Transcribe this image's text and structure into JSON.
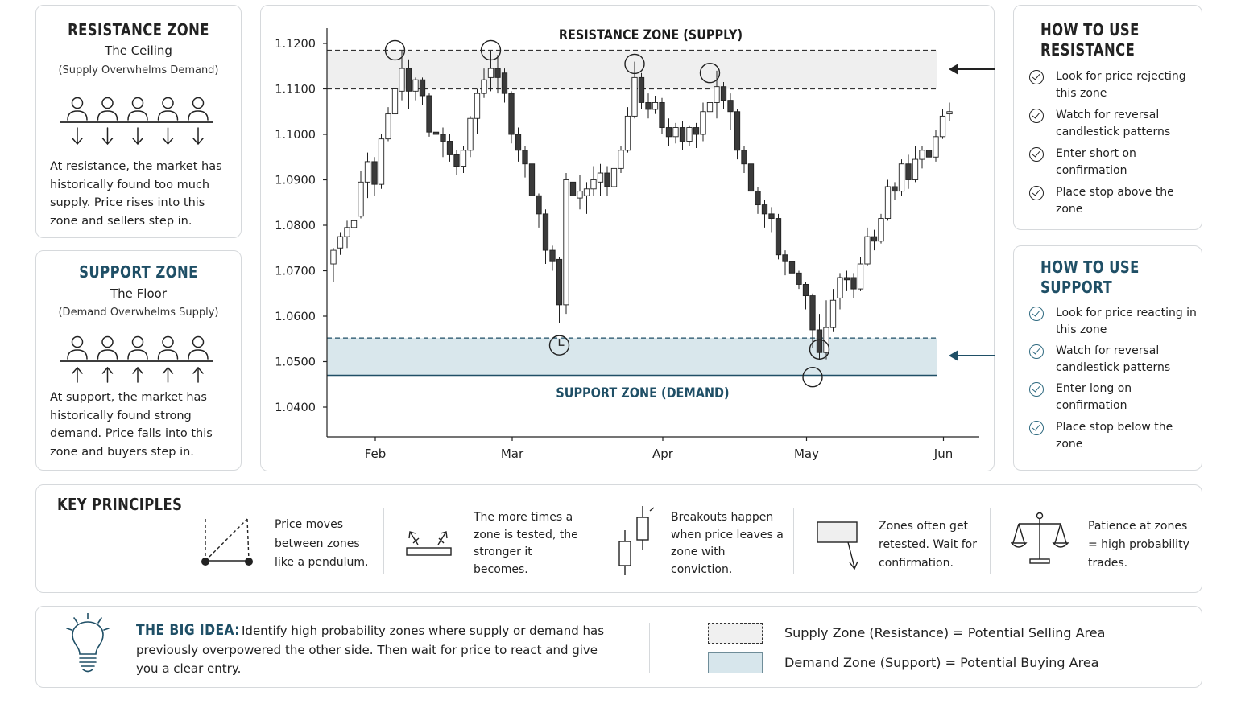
{
  "resistance_card": {
    "title": "RESISTANCE ZONE",
    "subtitle": "The Ceiling",
    "note": "(Supply Overwhelms Demand)",
    "body": "At resistance, the market has historically found too much supply. Price rises into this zone and sellers step in."
  },
  "support_card": {
    "title": "SUPPORT ZONE",
    "subtitle": "The Floor",
    "note": "(Demand Overwhelms Supply)",
    "body": "At support, the market has historically found strong demand. Price falls into this zone and buyers step in."
  },
  "how_resistance": {
    "title_line1": "HOW TO USE",
    "title_line2": "RESISTANCE",
    "items": [
      "Look for price rejecting this zone",
      "Watch for reversal candlestick patterns",
      "Enter short on confirmation",
      "Place stop above the zone"
    ]
  },
  "how_support": {
    "title_line1": "HOW TO USE",
    "title_line2": "SUPPORT",
    "items": [
      "Look for price reacting in this zone",
      "Watch for reversal candlestick patterns",
      "Enter long on confirmation",
      "Place stop below the zone"
    ]
  },
  "key_principles": {
    "title": "KEY PRINCIPLES",
    "items": [
      {
        "icon": "pendulum-triangle-icon",
        "text": "Price moves between zones like a pendulum."
      },
      {
        "icon": "tested-zone-arrows-icon",
        "text": "The more times a zone is tested, the stronger it becomes."
      },
      {
        "icon": "breakout-candles-icon",
        "text": "Breakouts happen when price leaves a zone with conviction."
      },
      {
        "icon": "retest-box-arrow-icon",
        "text": "Zones often get retested. Wait for confirmation."
      },
      {
        "icon": "balance-scale-icon",
        "text": "Patience at zones = high probability trades."
      }
    ]
  },
  "big_idea": {
    "icon": "lightbulb-icon",
    "title": "THE BIG IDEA:",
    "text": "Identify high probability zones where supply or demand has previously overpowered the other side. Then wait for price to react and give you a clear entry.",
    "legend": [
      {
        "label": "Supply Zone (Resistance) = Potential Selling Area",
        "style": "dashed",
        "color": "#f0f0f0"
      },
      {
        "label": "Demand Zone (Support) = Potential Buying Area",
        "style": "solid",
        "color": "#d7e6ec"
      }
    ]
  },
  "colors": {
    "accent": "#1f4f66",
    "supply_fill": "#efefef",
    "demand_fill": "#d9e7ec",
    "bull_candle": "#ffffff",
    "bear_candle": "#3a3a3a"
  },
  "chart_data": {
    "type": "candlestick",
    "title": "",
    "zone_labels": {
      "resistance": "RESISTANCE ZONE (SUPPLY)",
      "support": "SUPPORT ZONE (DEMAND)"
    },
    "ylim": [
      1.04,
      1.12
    ],
    "yticks": [
      "1.1200",
      "1.1100",
      "1.1000",
      "1.0900",
      "1.0800",
      "1.0700",
      "1.0600",
      "1.0500",
      "1.0400"
    ],
    "x_ticks": [
      {
        "label": "Feb",
        "index": 6
      },
      {
        "label": "Mar",
        "index": 26
      },
      {
        "label": "Apr",
        "index": 48
      },
      {
        "label": "May",
        "index": 69
      },
      {
        "label": "Jun",
        "index": 89
      }
    ],
    "zones": {
      "supply": {
        "low": 1.11,
        "high": 1.1185
      },
      "demand": {
        "low": 1.047,
        "high": 1.0552
      }
    },
    "grid": false,
    "candles": [
      [
        1.0715,
        1.0745,
        1.0675,
        1.075
      ],
      [
        1.075,
        1.0775,
        1.0735,
        1.0785
      ],
      [
        1.0775,
        1.0795,
        1.075,
        1.081
      ],
      [
        1.0795,
        1.081,
        1.077,
        1.0825
      ],
      [
        1.082,
        1.0895,
        1.0815,
        1.092
      ],
      [
        1.0895,
        1.094,
        1.086,
        1.096
      ],
      [
        1.094,
        1.089,
        1.0865,
        1.095
      ],
      [
        1.089,
        1.099,
        1.088,
        1.1
      ],
      [
        1.099,
        1.1045,
        1.0985,
        1.106
      ],
      [
        1.1045,
        1.11,
        1.102,
        1.112
      ],
      [
        1.1095,
        1.1145,
        1.1075,
        1.1185
      ],
      [
        1.1145,
        1.1095,
        1.1055,
        1.1165
      ],
      [
        1.1095,
        1.112,
        1.1075,
        1.1125
      ],
      [
        1.112,
        1.1085,
        1.1065,
        1.1125
      ],
      [
        1.1085,
        1.1005,
        1.0995,
        1.109
      ],
      [
        1.1005,
        1.1,
        1.0975,
        1.1025
      ],
      [
        1.1,
        1.0985,
        1.095,
        1.1015
      ],
      [
        1.0985,
        1.0955,
        1.094,
        1.1
      ],
      [
        1.0955,
        1.093,
        1.091,
        1.0965
      ],
      [
        1.093,
        1.0965,
        1.0915,
        1.0975
      ],
      [
        1.0965,
        1.1035,
        1.095,
        1.104
      ],
      [
        1.1035,
        1.109,
        1.1,
        1.11
      ],
      [
        1.109,
        1.112,
        1.108,
        1.1145
      ],
      [
        1.1125,
        1.1145,
        1.1095,
        1.1185
      ],
      [
        1.1145,
        1.1125,
        1.109,
        1.1175
      ],
      [
        1.1135,
        1.109,
        1.107,
        1.1145
      ],
      [
        1.109,
        1.1,
        1.098,
        1.1095
      ],
      [
        1.1,
        1.0965,
        1.094,
        1.1015
      ],
      [
        1.0965,
        1.0935,
        1.0905,
        1.0975
      ],
      [
        1.0935,
        1.0865,
        1.079,
        1.0945
      ],
      [
        1.0865,
        1.0825,
        1.0795,
        1.087
      ],
      [
        1.0825,
        1.0745,
        1.0715,
        1.0835
      ],
      [
        1.0745,
        1.072,
        1.07,
        1.0755
      ],
      [
        1.0725,
        1.0625,
        1.0585,
        1.073
      ],
      [
        1.0625,
        1.09,
        1.0605,
        1.0915
      ],
      [
        1.0895,
        1.0865,
        1.0835,
        1.0905
      ],
      [
        1.086,
        1.0875,
        1.0835,
        1.091
      ],
      [
        1.0865,
        1.088,
        1.0825,
        1.0895
      ],
      [
        1.088,
        1.09,
        1.0865,
        1.093
      ],
      [
        1.0895,
        1.0915,
        1.0865,
        1.0935
      ],
      [
        1.0915,
        1.0885,
        1.0865,
        1.093
      ],
      [
        1.0885,
        1.0925,
        1.0875,
        1.0945
      ],
      [
        1.0925,
        1.0965,
        1.0915,
        1.0975
      ],
      [
        1.0965,
        1.104,
        1.096,
        1.106
      ],
      [
        1.104,
        1.1125,
        1.1035,
        1.116
      ],
      [
        1.1125,
        1.107,
        1.1055,
        1.1135
      ],
      [
        1.107,
        1.1055,
        1.1035,
        1.109
      ],
      [
        1.1055,
        1.107,
        1.1045,
        1.1085
      ],
      [
        1.107,
        1.1015,
        1.1,
        1.108
      ],
      [
        1.1015,
        1.0995,
        1.0975,
        1.1035
      ],
      [
        1.0995,
        1.1015,
        1.098,
        1.1025
      ],
      [
        1.1015,
        1.0985,
        1.0965,
        1.103
      ],
      [
        1.0985,
        1.1015,
        1.0975,
        1.102
      ],
      [
        1.1015,
        1.1,
        1.097,
        1.1025
      ],
      [
        1.1,
        1.105,
        1.0985,
        1.107
      ],
      [
        1.105,
        1.107,
        1.1045,
        1.1085
      ],
      [
        1.107,
        1.1105,
        1.1035,
        1.114
      ],
      [
        1.1105,
        1.1075,
        1.1055,
        1.1115
      ],
      [
        1.1075,
        1.105,
        1.101,
        1.109
      ],
      [
        1.105,
        1.0965,
        1.0945,
        1.1055
      ],
      [
        1.0965,
        1.0935,
        1.0915,
        1.0975
      ],
      [
        1.0935,
        1.0875,
        1.0855,
        1.0945
      ],
      [
        1.0875,
        1.0845,
        1.0825,
        1.0885
      ],
      [
        1.0845,
        1.0825,
        1.0795,
        1.0855
      ],
      [
        1.0825,
        1.0815,
        1.0785,
        1.084
      ],
      [
        1.0815,
        1.0735,
        1.0725,
        1.0825
      ],
      [
        1.0735,
        1.072,
        1.069,
        1.0745
      ],
      [
        1.072,
        1.0695,
        1.0675,
        1.0795
      ],
      [
        1.0695,
        1.067,
        1.066,
        1.07
      ],
      [
        1.067,
        1.0645,
        1.0615,
        1.0675
      ],
      [
        1.0645,
        1.057,
        1.053,
        1.065
      ],
      [
        1.057,
        1.052,
        1.0505,
        1.0605
      ],
      [
        1.052,
        1.0575,
        1.0505,
        1.0635
      ],
      [
        1.0575,
        1.0635,
        1.0565,
        1.066
      ],
      [
        1.064,
        1.0685,
        1.0615,
        1.0695
      ],
      [
        1.0685,
        1.068,
        1.0655,
        1.07
      ],
      [
        1.0685,
        1.066,
        1.064,
        1.0695
      ],
      [
        1.066,
        1.0715,
        1.0655,
        1.073
      ],
      [
        1.0715,
        1.0775,
        1.071,
        1.0795
      ],
      [
        1.0775,
        1.0765,
        1.0745,
        1.079
      ],
      [
        1.0765,
        1.0815,
        1.076,
        1.0825
      ],
      [
        1.0815,
        1.0885,
        1.081,
        1.09
      ],
      [
        1.0885,
        1.0875,
        1.0855,
        1.0895
      ],
      [
        1.0875,
        1.0935,
        1.0865,
        1.0945
      ],
      [
        1.0935,
        1.09,
        1.088,
        1.0955
      ],
      [
        1.09,
        1.0945,
        1.0895,
        1.0975
      ],
      [
        1.0945,
        1.0965,
        1.0925,
        1.0975
      ],
      [
        1.0965,
        1.095,
        1.0935,
        1.0975
      ],
      [
        1.095,
        1.0995,
        1.094,
        1.101
      ],
      [
        1.0995,
        1.104,
        1.099,
        1.1055
      ],
      [
        1.1045,
        1.105,
        1.103,
        1.107
      ]
    ],
    "markers": [
      {
        "type": "circle",
        "index": 9,
        "y": 1.1185
      },
      {
        "type": "circle",
        "index": 23,
        "y": 1.1185
      },
      {
        "type": "circle",
        "index": 44,
        "y": 1.1155
      },
      {
        "type": "circle",
        "index": 55,
        "y": 1.1135
      },
      {
        "type": "clock",
        "index": 33,
        "y": 1.0536
      },
      {
        "type": "circle",
        "index": 71,
        "y": 1.0527
      },
      {
        "type": "circle",
        "index": 70,
        "y": 1.0466
      }
    ]
  }
}
